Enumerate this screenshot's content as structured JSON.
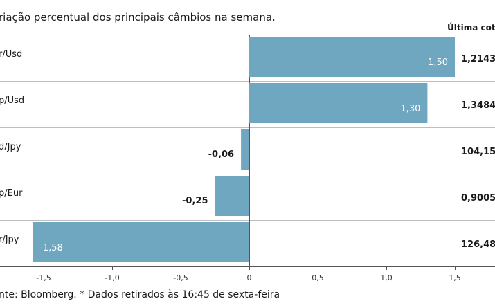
{
  "chart_data": {
    "type": "bar",
    "orientation": "horizontal",
    "title": "riação percentual dos principais câmbios na semana.",
    "column_header": "Última cotaç",
    "categories": [
      "r/Usd",
      "p/Usd",
      "d/Jpy",
      "p/Eur",
      "r/Jpy"
    ],
    "values": [
      1.5,
      1.3,
      -0.06,
      -0.25,
      -1.58
    ],
    "value_labels": [
      "1,50",
      "1,30",
      "-0,06",
      "-0,25",
      "-1,58"
    ],
    "last_quotes": [
      "1,2143",
      "1,3484",
      "104,15",
      "0,9005",
      "126,48"
    ],
    "xlim": [
      -1.6,
      1.8
    ],
    "x_ticks": [
      -1.5,
      -1.0,
      -0.5,
      0,
      0.5,
      1.0,
      1.5
    ],
    "x_tick_labels": [
      "-1,5",
      "-1,0",
      "-0,5",
      "0",
      "0,5",
      "1,0",
      "1,5"
    ],
    "bar_color": "#6fa6c0",
    "footer": "nte: Bloomberg.  * Dados retirados às 16:45 de sexta-feira"
  }
}
